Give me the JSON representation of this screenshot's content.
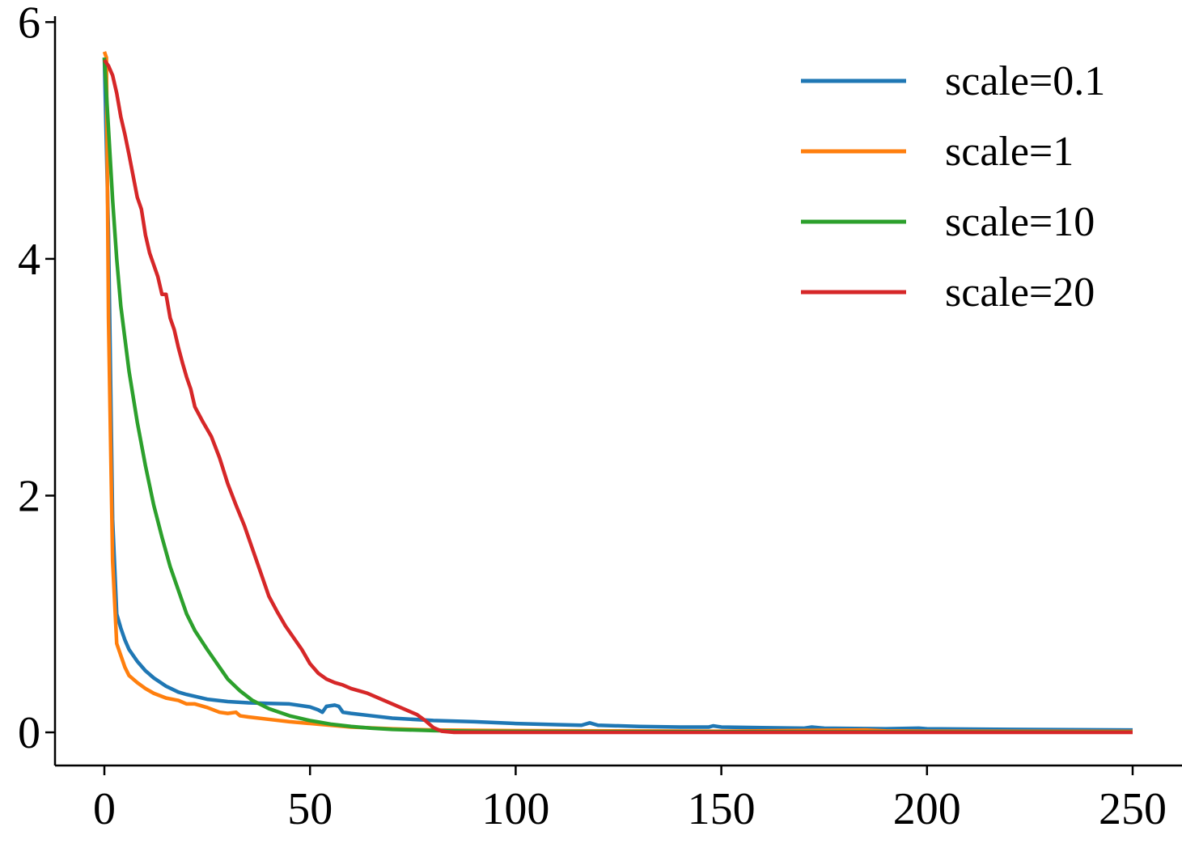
{
  "chart_data": {
    "type": "line",
    "title": "",
    "xlabel": "",
    "ylabel": "",
    "xlim": [
      -12,
      262
    ],
    "ylim": [
      -0.28,
      6.05
    ],
    "xticks": [
      0,
      50,
      100,
      150,
      200,
      250
    ],
    "yticks": [
      0,
      2,
      4,
      6
    ],
    "grid": false,
    "legend_position": "top-right",
    "series": [
      {
        "name": "scale=0.1",
        "color": "#1f77b4",
        "points": [
          [
            0,
            5.7
          ],
          [
            1,
            4.2
          ],
          [
            2,
            1.8
          ],
          [
            3,
            1.0
          ],
          [
            4,
            0.88
          ],
          [
            5,
            0.78
          ],
          [
            6,
            0.7
          ],
          [
            8,
            0.6
          ],
          [
            10,
            0.52
          ],
          [
            12,
            0.46
          ],
          [
            15,
            0.39
          ],
          [
            18,
            0.34
          ],
          [
            20,
            0.32
          ],
          [
            25,
            0.28
          ],
          [
            30,
            0.26
          ],
          [
            35,
            0.25
          ],
          [
            40,
            0.245
          ],
          [
            45,
            0.24
          ],
          [
            50,
            0.215
          ],
          [
            52,
            0.19
          ],
          [
            53,
            0.17
          ],
          [
            54,
            0.22
          ],
          [
            56,
            0.23
          ],
          [
            57,
            0.22
          ],
          [
            58,
            0.17
          ],
          [
            60,
            0.16
          ],
          [
            65,
            0.14
          ],
          [
            70,
            0.12
          ],
          [
            80,
            0.1
          ],
          [
            90,
            0.09
          ],
          [
            100,
            0.075
          ],
          [
            110,
            0.065
          ],
          [
            116,
            0.06
          ],
          [
            118,
            0.08
          ],
          [
            120,
            0.06
          ],
          [
            130,
            0.05
          ],
          [
            140,
            0.045
          ],
          [
            147,
            0.045
          ],
          [
            148,
            0.055
          ],
          [
            150,
            0.045
          ],
          [
            160,
            0.04
          ],
          [
            170,
            0.035
          ],
          [
            172,
            0.045
          ],
          [
            175,
            0.035
          ],
          [
            190,
            0.03
          ],
          [
            198,
            0.035
          ],
          [
            200,
            0.03
          ],
          [
            220,
            0.025
          ],
          [
            240,
            0.022
          ],
          [
            250,
            0.02
          ]
        ]
      },
      {
        "name": "scale=1",
        "color": "#ff7f0e",
        "points": [
          [
            0,
            5.75
          ],
          [
            0.5,
            5.7
          ],
          [
            1,
            3.5
          ],
          [
            2,
            1.45
          ],
          [
            3,
            0.75
          ],
          [
            4,
            0.65
          ],
          [
            5,
            0.55
          ],
          [
            6,
            0.48
          ],
          [
            8,
            0.42
          ],
          [
            10,
            0.37
          ],
          [
            12,
            0.33
          ],
          [
            15,
            0.29
          ],
          [
            18,
            0.27
          ],
          [
            20,
            0.24
          ],
          [
            22,
            0.24
          ],
          [
            25,
            0.21
          ],
          [
            28,
            0.17
          ],
          [
            30,
            0.16
          ],
          [
            32,
            0.17
          ],
          [
            33,
            0.14
          ],
          [
            35,
            0.13
          ],
          [
            40,
            0.11
          ],
          [
            45,
            0.09
          ],
          [
            50,
            0.075
          ],
          [
            55,
            0.06
          ],
          [
            60,
            0.045
          ],
          [
            70,
            0.03
          ],
          [
            80,
            0.02
          ],
          [
            100,
            0.015
          ],
          [
            150,
            0.01
          ],
          [
            185,
            0.02
          ],
          [
            190,
            0.012
          ],
          [
            200,
            0.01
          ],
          [
            250,
            0.008
          ]
        ]
      },
      {
        "name": "scale=10",
        "color": "#2ca02c",
        "points": [
          [
            0,
            5.7
          ],
          [
            1,
            5.1
          ],
          [
            2,
            4.5
          ],
          [
            3,
            4.0
          ],
          [
            4,
            3.6
          ],
          [
            6,
            3.05
          ],
          [
            8,
            2.62
          ],
          [
            10,
            2.25
          ],
          [
            12,
            1.92
          ],
          [
            14,
            1.65
          ],
          [
            16,
            1.4
          ],
          [
            18,
            1.2
          ],
          [
            20,
            1.0
          ],
          [
            22,
            0.86
          ],
          [
            25,
            0.7
          ],
          [
            28,
            0.55
          ],
          [
            30,
            0.45
          ],
          [
            33,
            0.35
          ],
          [
            36,
            0.27
          ],
          [
            40,
            0.2
          ],
          [
            45,
            0.14
          ],
          [
            50,
            0.1
          ],
          [
            55,
            0.07
          ],
          [
            60,
            0.05
          ],
          [
            65,
            0.035
          ],
          [
            70,
            0.025
          ],
          [
            80,
            0.015
          ],
          [
            90,
            0.01
          ],
          [
            100,
            0.008
          ],
          [
            150,
            0.005
          ],
          [
            250,
            0.003
          ]
        ]
      },
      {
        "name": "scale=20",
        "color": "#d62728",
        "points": [
          [
            0,
            5.68
          ],
          [
            1,
            5.63
          ],
          [
            2,
            5.55
          ],
          [
            3,
            5.4
          ],
          [
            4,
            5.2
          ],
          [
            5,
            5.05
          ],
          [
            6,
            4.88
          ],
          [
            7,
            4.7
          ],
          [
            8,
            4.52
          ],
          [
            9,
            4.42
          ],
          [
            10,
            4.2
          ],
          [
            11,
            4.05
          ],
          [
            12,
            3.95
          ],
          [
            13,
            3.85
          ],
          [
            14,
            3.7
          ],
          [
            15,
            3.7
          ],
          [
            16,
            3.5
          ],
          [
            17,
            3.4
          ],
          [
            18,
            3.25
          ],
          [
            19,
            3.12
          ],
          [
            20,
            3.0
          ],
          [
            21,
            2.9
          ],
          [
            22,
            2.75
          ],
          [
            24,
            2.62
          ],
          [
            26,
            2.5
          ],
          [
            28,
            2.32
          ],
          [
            30,
            2.1
          ],
          [
            32,
            1.92
          ],
          [
            34,
            1.75
          ],
          [
            36,
            1.55
          ],
          [
            38,
            1.35
          ],
          [
            40,
            1.15
          ],
          [
            42,
            1.02
          ],
          [
            44,
            0.9
          ],
          [
            46,
            0.8
          ],
          [
            48,
            0.7
          ],
          [
            50,
            0.58
          ],
          [
            52,
            0.5
          ],
          [
            54,
            0.45
          ],
          [
            56,
            0.42
          ],
          [
            58,
            0.4
          ],
          [
            60,
            0.37
          ],
          [
            62,
            0.35
          ],
          [
            64,
            0.33
          ],
          [
            66,
            0.3
          ],
          [
            68,
            0.27
          ],
          [
            70,
            0.24
          ],
          [
            72,
            0.21
          ],
          [
            74,
            0.18
          ],
          [
            76,
            0.15
          ],
          [
            78,
            0.1
          ],
          [
            80,
            0.04
          ],
          [
            82,
            0.01
          ],
          [
            85,
            0.0
          ],
          [
            100,
            0.0
          ],
          [
            150,
            0.0
          ],
          [
            200,
            0.0
          ],
          [
            250,
            0.0
          ]
        ]
      }
    ]
  }
}
